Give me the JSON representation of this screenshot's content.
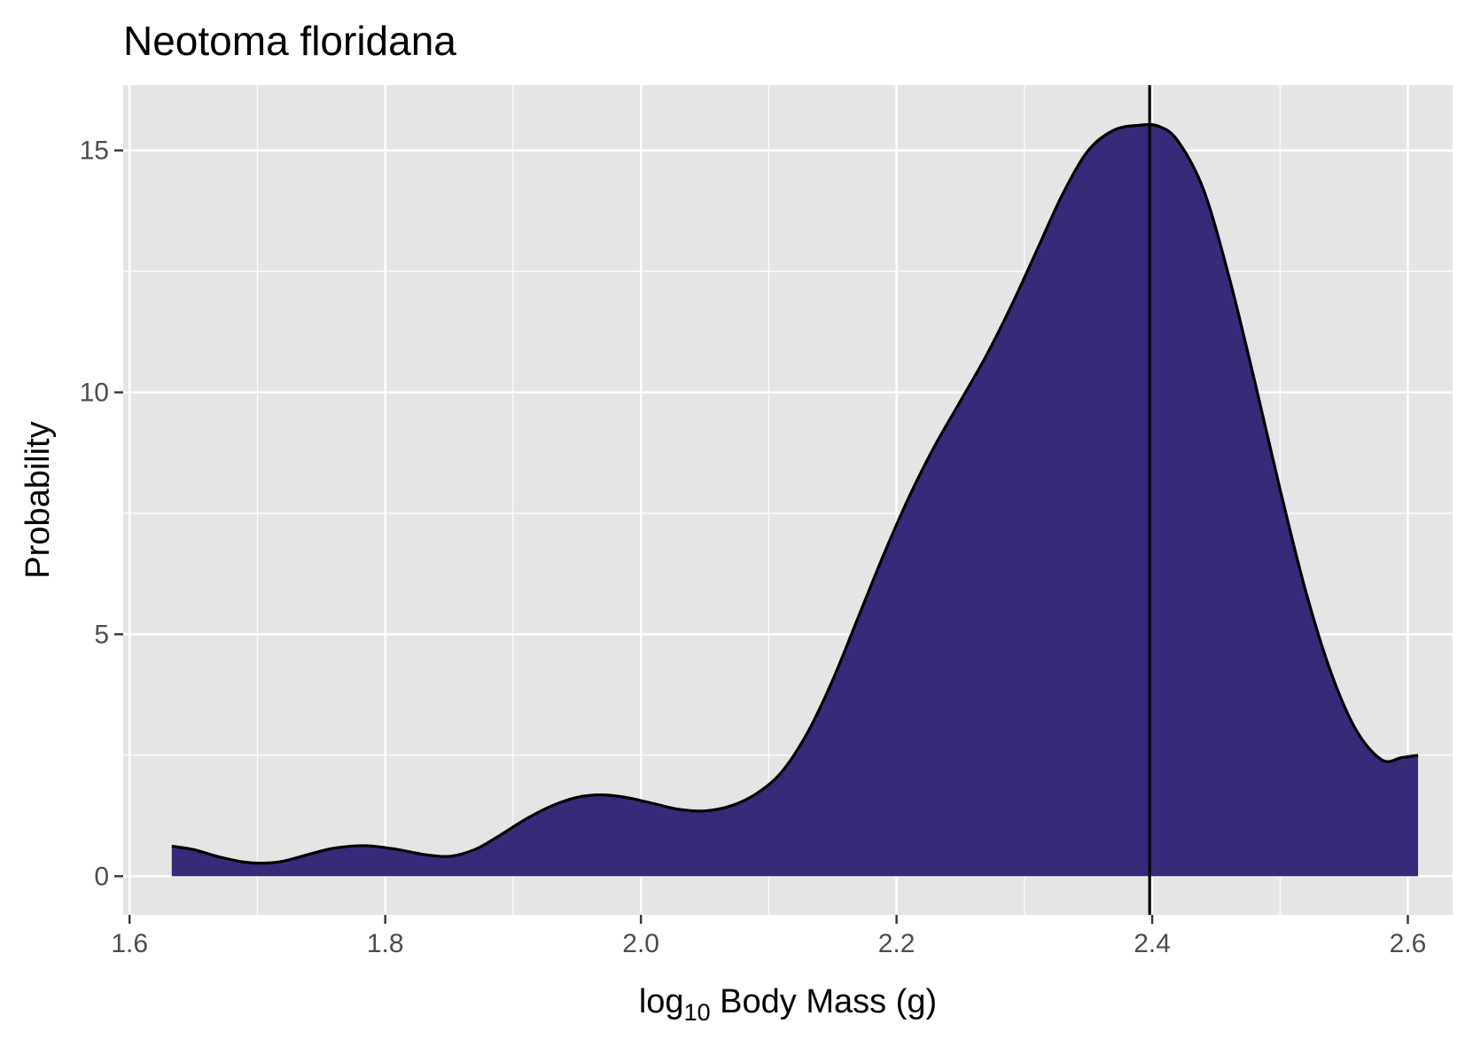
{
  "chart_data": {
    "type": "area",
    "title": "Neotoma floridana",
    "xlabel": {
      "prefix": "log",
      "subscript": "10",
      "suffix": " Body Mass (g)"
    },
    "ylabel": "Probability",
    "xlim": [
      1.595,
      2.635
    ],
    "ylim": [
      -0.8,
      16.35
    ],
    "x_ticks": [
      1.6,
      1.8,
      2.0,
      2.2,
      2.4,
      2.6
    ],
    "x_tick_labels": [
      "1.6",
      "1.8",
      "2.0",
      "2.2",
      "2.4",
      "2.6"
    ],
    "y_ticks": [
      0,
      5,
      10,
      15
    ],
    "y_tick_labels": [
      "0",
      "5",
      "10",
      "15"
    ],
    "x_minor_ticks": [
      1.7,
      1.9,
      2.1,
      2.3,
      2.5
    ],
    "y_minor_ticks": [
      2.5,
      7.5,
      12.5
    ],
    "grid": true,
    "fill_color": "#372a78",
    "line_color": "#000000",
    "panel_color": "#e5e5e5",
    "grid_color": "#ffffff",
    "vline_x": 2.398,
    "series": [
      {
        "x": [
          1.633,
          1.65,
          1.67,
          1.69,
          1.705,
          1.72,
          1.74,
          1.76,
          1.785,
          1.81,
          1.83,
          1.85,
          1.87,
          1.89,
          1.91,
          1.93,
          1.95,
          1.97,
          1.99,
          2.01,
          2.03,
          2.05,
          2.07,
          2.09,
          2.11,
          2.13,
          2.15,
          2.17,
          2.19,
          2.21,
          2.23,
          2.25,
          2.27,
          2.29,
          2.31,
          2.33,
          2.35,
          2.37,
          2.39,
          2.405,
          2.42,
          2.44,
          2.46,
          2.48,
          2.5,
          2.52,
          2.54,
          2.56,
          2.58,
          2.595,
          2.608
        ],
        "y": [
          0.62,
          0.55,
          0.4,
          0.29,
          0.27,
          0.31,
          0.45,
          0.58,
          0.63,
          0.55,
          0.45,
          0.41,
          0.55,
          0.85,
          1.18,
          1.45,
          1.63,
          1.68,
          1.62,
          1.5,
          1.38,
          1.35,
          1.45,
          1.7,
          2.15,
          2.95,
          4.05,
          5.35,
          6.65,
          7.85,
          8.9,
          9.82,
          10.75,
          11.8,
          12.95,
          14.1,
          15.0,
          15.42,
          15.52,
          15.5,
          15.2,
          14.2,
          12.4,
          10.25,
          8.0,
          5.9,
          4.2,
          3.0,
          2.4,
          2.45,
          2.5
        ]
      }
    ]
  }
}
